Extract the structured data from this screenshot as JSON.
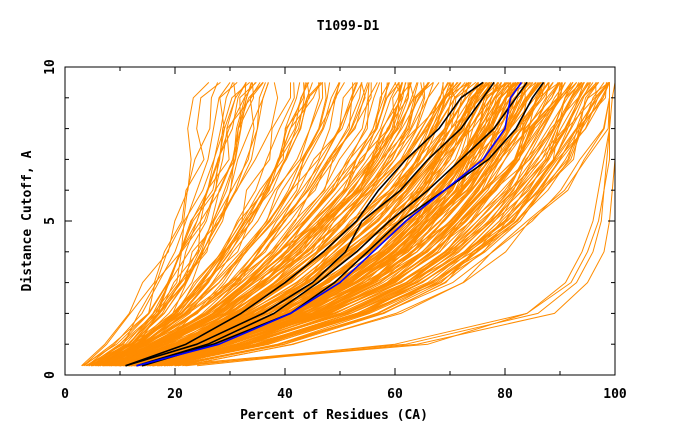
{
  "chart_data": {
    "type": "line",
    "title": "T1099-D1",
    "xlabel": "Percent of Residues (CA)",
    "ylabel": "Distance Cutoff, A",
    "xlim": [
      0,
      100
    ],
    "ylim": [
      0,
      10
    ],
    "x_ticks": [
      0,
      20,
      40,
      60,
      80,
      100
    ],
    "y_ticks": [
      0,
      5,
      10
    ],
    "x_tick_labels": [
      "0",
      "20",
      "40",
      "60",
      "80",
      "100"
    ],
    "y_tick_labels": [
      "0",
      "5",
      "10"
    ],
    "y_values": [
      0.3,
      1,
      2,
      3,
      4,
      5,
      6,
      7,
      8,
      9,
      9.5
    ],
    "colors": {
      "bundle": "#ff8c00",
      "highlight_black": "#000000",
      "highlight_blue": "#0000ff",
      "frame": "#000000"
    },
    "highlight_series": [
      {
        "color": "#000000",
        "x": [
          11,
          22,
          32,
          40,
          47,
          53,
          57,
          62,
          68,
          72,
          76
        ]
      },
      {
        "color": "#000000",
        "x": [
          11,
          24,
          36,
          45,
          51,
          54,
          61,
          66,
          72,
          76,
          78
        ]
      },
      {
        "color": "#000000",
        "x": [
          13,
          26,
          38,
          46,
          53,
          59,
          66,
          72,
          78,
          82,
          84
        ]
      },
      {
        "color": "#000000",
        "x": [
          14,
          27,
          41,
          49,
          55,
          61,
          69,
          77,
          82,
          85,
          87
        ]
      },
      {
        "color": "#0000ff",
        "x": [
          13,
          28,
          41,
          50,
          56,
          62,
          69,
          76,
          80,
          81,
          83
        ]
      }
    ],
    "bundle_series": [
      [
        5,
        11,
        16,
        19,
        21,
        24,
        26,
        28,
        29,
        31,
        33
      ],
      [
        5,
        12,
        18,
        22,
        25,
        28,
        31,
        33,
        35,
        36,
        37
      ],
      [
        6,
        13,
        20,
        25,
        29,
        33,
        36,
        39,
        41,
        43,
        44
      ],
      [
        6,
        14,
        22,
        28,
        33,
        37,
        41,
        44,
        47,
        49,
        50
      ],
      [
        7,
        15,
        24,
        30,
        36,
        41,
        45,
        49,
        52,
        54,
        55
      ],
      [
        7,
        16,
        26,
        33,
        39,
        44,
        49,
        53,
        56,
        58,
        59
      ],
      [
        8,
        17,
        28,
        36,
        42,
        48,
        53,
        57,
        60,
        62,
        63
      ],
      [
        8,
        18,
        30,
        38,
        45,
        51,
        56,
        60,
        63,
        66,
        67
      ],
      [
        9,
        19,
        32,
        41,
        48,
        54,
        59,
        63,
        66,
        69,
        70
      ],
      [
        9,
        20,
        34,
        43,
        50,
        57,
        62,
        66,
        69,
        72,
        73
      ],
      [
        10,
        21,
        35,
        45,
        52,
        59,
        64,
        68,
        71,
        74,
        76
      ],
      [
        10,
        22,
        37,
        47,
        55,
        61,
        66,
        70,
        73,
        76,
        78
      ],
      [
        11,
        23,
        38,
        49,
        57,
        63,
        68,
        72,
        75,
        78,
        80
      ],
      [
        11,
        24,
        40,
        51,
        59,
        65,
        70,
        74,
        77,
        80,
        82
      ],
      [
        12,
        26,
        42,
        53,
        61,
        67,
        72,
        76,
        79,
        82,
        84
      ],
      [
        12,
        27,
        43,
        55,
        63,
        69,
        74,
        78,
        81,
        84,
        86
      ],
      [
        13,
        28,
        45,
        57,
        65,
        71,
        76,
        80,
        83,
        86,
        88
      ],
      [
        14,
        30,
        47,
        59,
        67,
        73,
        78,
        82,
        85,
        88,
        90
      ],
      [
        15,
        31,
        49,
        61,
        69,
        75,
        80,
        84,
        87,
        90,
        92
      ],
      [
        16,
        33,
        51,
        63,
        71,
        77,
        82,
        86,
        89,
        92,
        94
      ],
      [
        17,
        35,
        53,
        65,
        73,
        79,
        84,
        88,
        91,
        94,
        96
      ],
      [
        18,
        37,
        55,
        67,
        75,
        81,
        86,
        90,
        93,
        95,
        97
      ],
      [
        4,
        9,
        14,
        17,
        20,
        22,
        24,
        26,
        27,
        28,
        30
      ],
      [
        6,
        12,
        17,
        21,
        24,
        27,
        29,
        31,
        32,
        33,
        34
      ],
      [
        8,
        17,
        27,
        34,
        40,
        46,
        51,
        55,
        59,
        61,
        62
      ],
      [
        9,
        18,
        29,
        37,
        44,
        50,
        55,
        60,
        64,
        66,
        68
      ],
      [
        10,
        20,
        31,
        40,
        47,
        53,
        58,
        63,
        67,
        70,
        72
      ],
      [
        12,
        22,
        33,
        42,
        49,
        55,
        60,
        65,
        69,
        73,
        75
      ],
      [
        13,
        25,
        39,
        50,
        58,
        64,
        69,
        73,
        77,
        80,
        82
      ],
      [
        15,
        29,
        44,
        56,
        64,
        70,
        75,
        79,
        83,
        86,
        88
      ],
      [
        17,
        33,
        50,
        62,
        70,
        76,
        81,
        85,
        89,
        92,
        94
      ],
      [
        7,
        14,
        21,
        26,
        30,
        34,
        37,
        40,
        42,
        44,
        45
      ],
      [
        9,
        17,
        25,
        31,
        36,
        40,
        44,
        47,
        50,
        52,
        53
      ],
      [
        11,
        21,
        31,
        38,
        44,
        49,
        54,
        58,
        61,
        63,
        64
      ],
      [
        14,
        27,
        41,
        52,
        60,
        66,
        71,
        75,
        79,
        82,
        84
      ],
      [
        16,
        31,
        47,
        59,
        67,
        73,
        78,
        82,
        86,
        89,
        91
      ],
      [
        20,
        40,
        58,
        69,
        76,
        82,
        87,
        91,
        94,
        96,
        98
      ],
      [
        10,
        22,
        36,
        46,
        53,
        59,
        64,
        68,
        72,
        75,
        77
      ],
      [
        12,
        25,
        40,
        50,
        57,
        63,
        68,
        72,
        76,
        79,
        81
      ],
      [
        14,
        28,
        44,
        54,
        61,
        67,
        72,
        76,
        80,
        83,
        85
      ]
    ],
    "outlier_series": [
      {
        "y": [
          0.3,
          1,
          2,
          3,
          4,
          5,
          6,
          7,
          8,
          9,
          9.5
        ],
        "x": [
          18,
          62,
          86,
          93,
          96,
          97.5,
          98,
          98.5,
          99,
          99.5,
          100
        ]
      },
      {
        "y": [
          0.3,
          1,
          2,
          3,
          4,
          5,
          6,
          7,
          8,
          9,
          9.5
        ],
        "x": [
          20,
          64,
          89,
          95,
          98,
          99,
          99.5,
          100,
          100,
          100,
          100
        ]
      },
      {
        "y": [
          0.3,
          1,
          2,
          3,
          4,
          5,
          6,
          7,
          8,
          9,
          9.5
        ],
        "x": [
          22,
          60,
          84,
          91,
          94,
          96,
          97,
          98,
          99,
          99,
          99
        ]
      },
      {
        "y": [
          0.3,
          0.6,
          1,
          2,
          3,
          4,
          5,
          6,
          7,
          8,
          9.5
        ],
        "x": [
          24,
          40,
          66,
          84,
          92,
          95,
          97,
          98,
          99,
          99,
          99
        ]
      }
    ]
  }
}
